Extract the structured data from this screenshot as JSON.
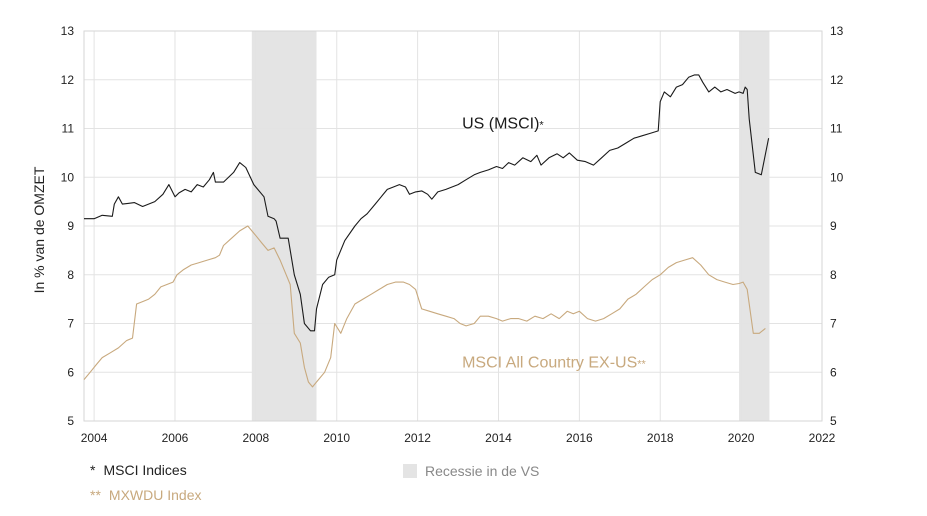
{
  "chart_data": {
    "type": "line",
    "ylabel": "In % van de OMZET",
    "xlim": [
      2003.75,
      2022
    ],
    "ylim": [
      5,
      13
    ],
    "x_ticks": [
      "2004",
      "2006",
      "2008",
      "2010",
      "2012",
      "2014",
      "2016",
      "2018",
      "2020",
      "2022"
    ],
    "y_ticks": [
      "5",
      "6",
      "7",
      "8",
      "9",
      "10",
      "11",
      "12",
      "13"
    ],
    "grid": true,
    "colors": {
      "us": "#1a1a1a",
      "exus": "#c8a97e",
      "recession": "#e4e4e4"
    },
    "recessions": [
      [
        2007.9,
        2009.5
      ],
      [
        2019.95,
        2020.7
      ]
    ],
    "series_labels": [
      {
        "text": "US (MSCI)",
        "marker": "*",
        "series": "us",
        "x": 2013.1,
        "y": 11.0
      },
      {
        "text": "MSCI All Country EX-US",
        "marker": "**",
        "series": "exus",
        "x": 2013.1,
        "y": 6.1
      }
    ],
    "series": [
      {
        "id": "us",
        "x": [
          2003.75,
          2004.0,
          2004.2,
          2004.45,
          2004.5,
          2004.6,
          2004.7,
          2005.0,
          2005.2,
          2005.5,
          2005.7,
          2005.85,
          2006.0,
          2006.1,
          2006.25,
          2006.4,
          2006.55,
          2006.7,
          2006.85,
          2006.95,
          2007.0,
          2007.2,
          2007.45,
          2007.6,
          2007.75,
          2007.95,
          2008.2,
          2008.3,
          2008.45,
          2008.5,
          2008.6,
          2008.8,
          2008.95,
          2009.1,
          2009.2,
          2009.35,
          2009.45,
          2009.5,
          2009.65,
          2009.8,
          2009.95,
          2010.0,
          2010.2,
          2010.45,
          2010.6,
          2010.75,
          2010.95,
          2011.1,
          2011.25,
          2011.4,
          2011.55,
          2011.7,
          2011.8,
          2011.95,
          2012.1,
          2012.25,
          2012.35,
          2012.5,
          2012.7,
          2012.85,
          2013.0,
          2013.2,
          2013.4,
          2013.55,
          2013.75,
          2013.95,
          2014.1,
          2014.25,
          2014.4,
          2014.6,
          2014.8,
          2014.95,
          2015.05,
          2015.25,
          2015.45,
          2015.6,
          2015.75,
          2015.95,
          2016.15,
          2016.35,
          2016.55,
          2016.75,
          2016.95,
          2017.15,
          2017.35,
          2017.55,
          2017.75,
          2017.95,
          2018.0,
          2018.1,
          2018.25,
          2018.4,
          2018.55,
          2018.7,
          2018.85,
          2018.95,
          2019.05,
          2019.2,
          2019.35,
          2019.5,
          2019.65,
          2019.85,
          2019.95,
          2020.05,
          2020.1,
          2020.15,
          2020.2,
          2020.35,
          2020.5,
          2020.68
        ],
        "values": [
          9.15,
          9.15,
          9.22,
          9.2,
          9.45,
          9.6,
          9.45,
          9.48,
          9.4,
          9.5,
          9.65,
          9.85,
          9.6,
          9.68,
          9.75,
          9.7,
          9.85,
          9.8,
          9.95,
          10.1,
          9.9,
          9.9,
          10.1,
          10.3,
          10.2,
          9.85,
          9.6,
          9.2,
          9.15,
          9.1,
          8.75,
          8.75,
          8.0,
          7.6,
          7.0,
          6.85,
          6.85,
          7.3,
          7.8,
          7.95,
          8.0,
          8.3,
          8.7,
          9.0,
          9.15,
          9.25,
          9.45,
          9.6,
          9.75,
          9.8,
          9.85,
          9.8,
          9.65,
          9.7,
          9.72,
          9.65,
          9.55,
          9.7,
          9.75,
          9.8,
          9.85,
          9.95,
          10.05,
          10.1,
          10.15,
          10.22,
          10.18,
          10.3,
          10.25,
          10.4,
          10.32,
          10.45,
          10.25,
          10.4,
          10.48,
          10.4,
          10.5,
          10.35,
          10.32,
          10.25,
          10.4,
          10.55,
          10.6,
          10.7,
          10.8,
          10.85,
          10.9,
          10.95,
          11.55,
          11.75,
          11.65,
          11.85,
          11.9,
          12.05,
          12.1,
          12.1,
          11.95,
          11.75,
          11.85,
          11.75,
          11.8,
          11.72,
          11.75,
          11.72,
          11.85,
          11.8,
          11.2,
          10.1,
          10.05,
          10.8
        ]
      },
      {
        "id": "exus",
        "x": [
          2003.75,
          2003.9,
          2004.05,
          2004.2,
          2004.4,
          2004.6,
          2004.8,
          2004.95,
          2005.05,
          2005.2,
          2005.35,
          2005.5,
          2005.65,
          2005.8,
          2005.95,
          2006.05,
          2006.2,
          2006.4,
          2006.6,
          2006.8,
          2007.0,
          2007.1,
          2007.2,
          2007.4,
          2007.6,
          2007.8,
          2008.0,
          2008.15,
          2008.3,
          2008.45,
          2008.6,
          2008.75,
          2008.85,
          2008.95,
          2009.1,
          2009.2,
          2009.3,
          2009.4,
          2009.55,
          2009.7,
          2009.85,
          2009.95,
          2010.1,
          2010.25,
          2010.45,
          2010.65,
          2010.85,
          2011.05,
          2011.25,
          2011.45,
          2011.65,
          2011.8,
          2011.95,
          2012.1,
          2012.3,
          2012.5,
          2012.7,
          2012.9,
          2013.05,
          2013.2,
          2013.4,
          2013.55,
          2013.75,
          2013.95,
          2014.1,
          2014.3,
          2014.5,
          2014.7,
          2014.9,
          2015.1,
          2015.3,
          2015.5,
          2015.7,
          2015.85,
          2016.0,
          2016.2,
          2016.4,
          2016.6,
          2016.8,
          2017.0,
          2017.2,
          2017.4,
          2017.6,
          2017.8,
          2018.0,
          2018.2,
          2018.4,
          2018.6,
          2018.8,
          2019.0,
          2019.2,
          2019.4,
          2019.6,
          2019.8,
          2019.95,
          2020.05,
          2020.15,
          2020.3,
          2020.45,
          2020.6
        ],
        "values": [
          5.85,
          6.0,
          6.15,
          6.3,
          6.4,
          6.5,
          6.65,
          6.7,
          7.4,
          7.45,
          7.5,
          7.6,
          7.75,
          7.8,
          7.85,
          8.0,
          8.1,
          8.2,
          8.25,
          8.3,
          8.35,
          8.4,
          8.6,
          8.75,
          8.9,
          9.0,
          8.8,
          8.65,
          8.5,
          8.55,
          8.3,
          8.0,
          7.8,
          6.8,
          6.6,
          6.1,
          5.8,
          5.7,
          5.85,
          6.0,
          6.3,
          7.0,
          6.8,
          7.1,
          7.4,
          7.5,
          7.6,
          7.7,
          7.8,
          7.85,
          7.85,
          7.8,
          7.7,
          7.3,
          7.25,
          7.2,
          7.15,
          7.1,
          7.0,
          6.95,
          7.0,
          7.15,
          7.15,
          7.1,
          7.05,
          7.1,
          7.1,
          7.05,
          7.15,
          7.1,
          7.2,
          7.1,
          7.25,
          7.2,
          7.25,
          7.1,
          7.05,
          7.1,
          7.2,
          7.3,
          7.5,
          7.6,
          7.75,
          7.9,
          8.0,
          8.15,
          8.25,
          8.3,
          8.35,
          8.2,
          8.0,
          7.9,
          7.85,
          7.8,
          7.82,
          7.85,
          7.7,
          6.8,
          6.8,
          6.9
        ]
      }
    ]
  },
  "legend": {
    "msci_marker": "*",
    "msci_label": "MSCI Indices",
    "mxwdu_marker": "**",
    "mxwdu_label": "MXWDU Index",
    "recession_label": "Recessie in de VS"
  }
}
